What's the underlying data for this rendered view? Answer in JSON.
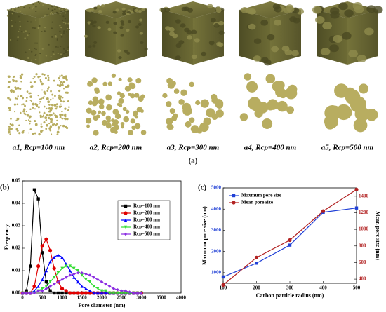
{
  "panel_a": {
    "labels": [
      "a1, Rcp=100 nm",
      "a2, Rcp=200 nm",
      "a3, Rcp=300 nm",
      "a4, Rcp=400 nm",
      "a5, Rcp=500 nm"
    ],
    "caption": "(a)"
  },
  "chart_data": [
    {
      "type": "line",
      "panel": "(b)",
      "x_label": "Pore diameter (nm)",
      "y_label": "Frequency",
      "xlim": [
        0,
        4000
      ],
      "xticks": [
        0,
        500,
        1000,
        1500,
        2000,
        2500,
        3000,
        3500,
        4000
      ],
      "ylim": [
        0,
        0.05
      ],
      "yticks": [
        {
          "value": 0,
          "label": "0.00"
        },
        {
          "value": 0.01,
          "label": "0.01"
        },
        {
          "value": 0.02,
          "label": "0.02"
        },
        {
          "value": 0.03,
          "label": "0.03"
        },
        {
          "value": 0.04,
          "label": "0.04"
        },
        {
          "value": 0.05,
          "label": "0.05"
        }
      ],
      "legend": "upper right",
      "x": [
        0,
        100,
        200,
        300,
        400,
        500,
        600,
        700,
        800,
        900,
        1000,
        1100,
        1200,
        1300,
        1400,
        1500,
        1600,
        1700,
        1800,
        1900,
        2000,
        2100,
        2200,
        2300,
        2400,
        2500,
        2600,
        2700,
        2800,
        2900,
        3000
      ],
      "series": [
        {
          "name": "Rcp=100 nm",
          "color": "#000000",
          "marker": "square",
          "values": [
            0,
            0.001,
            0.012,
            0.046,
            0.042,
            0.018,
            0.005,
            0.001,
            0,
            0,
            0,
            0,
            0,
            0,
            0,
            0,
            0,
            0,
            0,
            0,
            0,
            0,
            0,
            0,
            0,
            0,
            0,
            0,
            0,
            0,
            0
          ]
        },
        {
          "name": "Rcp=200 nm",
          "color": "#e00000",
          "marker": "circle",
          "values": [
            0,
            0,
            0,
            0.003,
            0.012,
            0.021,
            0.024,
            0.019,
            0.011,
            0.005,
            0.002,
            0.001,
            0,
            0,
            0,
            0,
            0,
            0,
            0,
            0,
            0,
            0,
            0,
            0,
            0,
            0,
            0,
            0,
            0,
            0,
            0
          ]
        },
        {
          "name": "Rcp=300 nm",
          "color": "#0000ff",
          "marker": "triangle",
          "values": [
            0,
            0,
            0,
            0.001,
            0.003,
            0.006,
            0.01,
            0.014,
            0.016,
            0.017,
            0.016,
            0.013,
            0.01,
            0.007,
            0.005,
            0.003,
            0.002,
            0.001,
            0,
            0,
            0,
            0,
            0,
            0,
            0,
            0,
            0,
            0,
            0,
            0,
            0
          ]
        },
        {
          "name": "Rcp=400 nm",
          "color": "#33dd33",
          "marker": "triangle-down",
          "values": [
            0,
            0,
            0,
            0,
            0.001,
            0.002,
            0.003,
            0.005,
            0.007,
            0.009,
            0.011,
            0.012,
            0.012,
            0.011,
            0.01,
            0.008,
            0.006,
            0.005,
            0.003,
            0.002,
            0.001,
            0.001,
            0,
            0,
            0,
            0,
            0,
            0,
            0,
            0,
            0
          ]
        },
        {
          "name": "Rcp=500 nm",
          "color": "#8a2be2",
          "marker": "diamond",
          "values": [
            0,
            0,
            0,
            0,
            0.001,
            0.001,
            0.002,
            0.003,
            0.004,
            0.005,
            0.006,
            0.007,
            0.008,
            0.0085,
            0.009,
            0.009,
            0.0085,
            0.008,
            0.007,
            0.006,
            0.005,
            0.004,
            0.003,
            0.002,
            0.0015,
            0.001,
            0.001,
            0.0005,
            0,
            0,
            0
          ]
        }
      ]
    },
    {
      "type": "line",
      "panel": "(c)",
      "x_label": "Carbon particle radius (nm)",
      "y_label": "Maxmum pore size (nm)",
      "y2_label": "Mean pore size (nm)",
      "xlim": [
        100,
        500
      ],
      "xticks": [
        100,
        200,
        300,
        400,
        500
      ],
      "ylim": [
        500,
        5000
      ],
      "yticks": [
        1000,
        2000,
        3000,
        4000,
        5000
      ],
      "y2lim": [
        350,
        1500
      ],
      "y2ticks": [
        400,
        600,
        800,
        1000,
        1200,
        1400
      ],
      "legend": "upper left",
      "x": [
        100,
        200,
        300,
        400,
        500
      ],
      "series": [
        {
          "name": "Maxmum pore size",
          "color": "#1f3fd6",
          "marker": "square",
          "values": [
            800,
            1450,
            2300,
            3850,
            4050
          ]
        },
        {
          "name": "Mean pore size",
          "color": "#b22222",
          "marker": "circle",
          "axis": "y2",
          "values": [
            330,
            660,
            870,
            1220,
            1480
          ]
        }
      ]
    }
  ]
}
